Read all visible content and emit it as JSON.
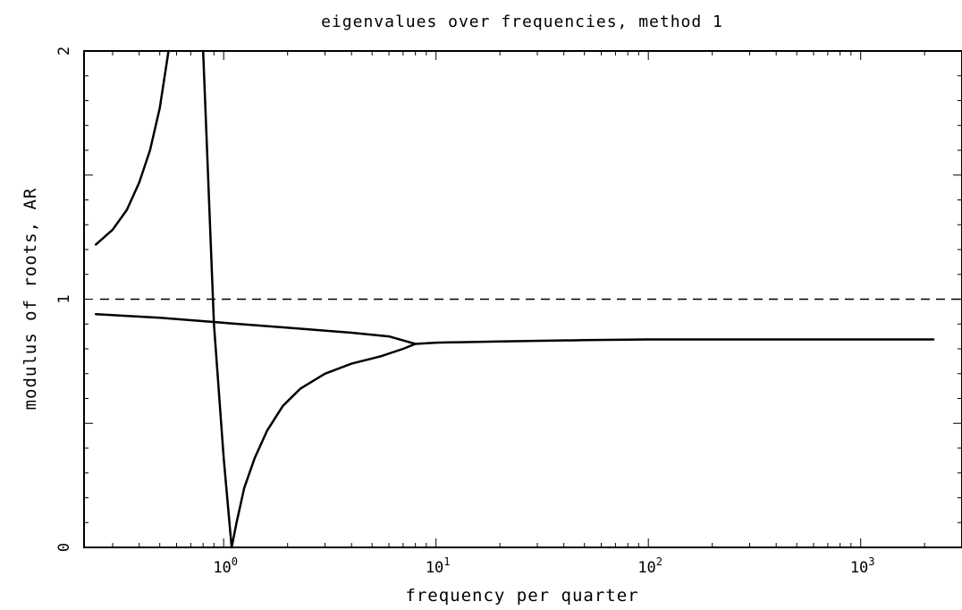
{
  "chart_data": {
    "type": "line",
    "title": "eigenvalues over frequencies, method 1",
    "xlabel": "frequency per quarter",
    "ylabel": "modulus of roots, AR",
    "x_scale": "log",
    "xlim": [
      0.22,
      3000
    ],
    "ylim": [
      0,
      2
    ],
    "x_ticks": [
      {
        "base": "10",
        "exp": "0",
        "value": 1
      },
      {
        "base": "10",
        "exp": "1",
        "value": 10
      },
      {
        "base": "10",
        "exp": "2",
        "value": 100
      },
      {
        "base": "10",
        "exp": "3",
        "value": 1000
      }
    ],
    "y_ticks": [
      {
        "label": "0",
        "value": 0
      },
      {
        "label": "1",
        "value": 1
      },
      {
        "label": "2",
        "value": 2
      }
    ],
    "grid": false,
    "reference_lines": [
      {
        "y": 1,
        "style": "dashed",
        "color": "#000000"
      }
    ],
    "series": [
      {
        "color": "#000000",
        "points": [
          [
            0.25,
            1.22
          ],
          [
            0.3,
            1.28
          ],
          [
            0.35,
            1.36
          ],
          [
            0.4,
            1.47
          ],
          [
            0.45,
            1.6
          ],
          [
            0.5,
            1.77
          ],
          [
            0.55,
            2.0
          ]
        ]
      },
      {
        "color": "#000000",
        "points": [
          [
            0.8,
            2.0
          ],
          [
            0.9,
            0.9
          ],
          [
            1.0,
            0.36
          ],
          [
            1.09,
            0.0
          ]
        ]
      },
      {
        "color": "#000000",
        "points": [
          [
            1.09,
            0.0
          ],
          [
            1.15,
            0.1
          ],
          [
            1.25,
            0.24
          ],
          [
            1.4,
            0.36
          ],
          [
            1.6,
            0.47
          ],
          [
            1.9,
            0.57
          ],
          [
            2.3,
            0.64
          ],
          [
            3.0,
            0.7
          ],
          [
            4.0,
            0.74
          ],
          [
            5.5,
            0.77
          ],
          [
            7.0,
            0.8
          ],
          [
            8.0,
            0.82
          ]
        ]
      },
      {
        "color": "#000000",
        "points": [
          [
            0.25,
            0.94
          ],
          [
            0.5,
            0.925
          ],
          [
            1.0,
            0.905
          ],
          [
            2.0,
            0.885
          ],
          [
            4.0,
            0.865
          ],
          [
            6.0,
            0.85
          ],
          [
            8.0,
            0.82
          ],
          [
            10.0,
            0.825
          ],
          [
            20.0,
            0.83
          ],
          [
            50.0,
            0.835
          ],
          [
            100.0,
            0.838
          ],
          [
            500.0,
            0.838
          ],
          [
            2200.0,
            0.838
          ]
        ]
      }
    ]
  }
}
